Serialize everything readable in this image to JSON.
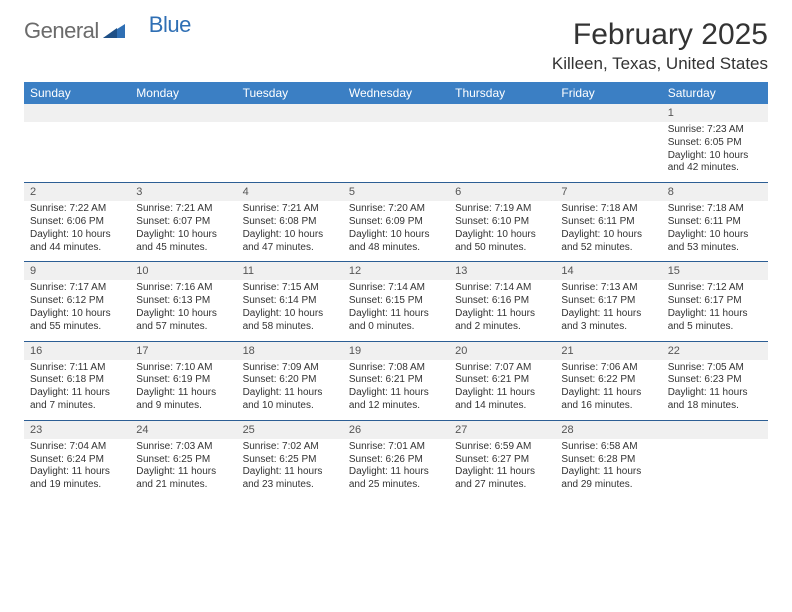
{
  "brand": {
    "part1": "General",
    "part2": "Blue"
  },
  "title": "February 2025",
  "location": "Killeen, Texas, United States",
  "dayLabels": [
    "Sunday",
    "Monday",
    "Tuesday",
    "Wednesday",
    "Thursday",
    "Friday",
    "Saturday"
  ],
  "colors": {
    "header_bg": "#3b7fc4",
    "header_text": "#ffffff",
    "daynum_bg": "#f0f0f0",
    "border": "#2c5e94",
    "logo_gray": "#6b6b6b",
    "logo_blue": "#2f6fb4",
    "text": "#333333",
    "page_bg": "#ffffff"
  },
  "weeks": [
    [
      {
        "num": "",
        "lines": []
      },
      {
        "num": "",
        "lines": []
      },
      {
        "num": "",
        "lines": []
      },
      {
        "num": "",
        "lines": []
      },
      {
        "num": "",
        "lines": []
      },
      {
        "num": "",
        "lines": []
      },
      {
        "num": "1",
        "lines": [
          "Sunrise: 7:23 AM",
          "Sunset: 6:05 PM",
          "Daylight: 10 hours",
          "and 42 minutes."
        ]
      }
    ],
    [
      {
        "num": "2",
        "lines": [
          "Sunrise: 7:22 AM",
          "Sunset: 6:06 PM",
          "Daylight: 10 hours",
          "and 44 minutes."
        ]
      },
      {
        "num": "3",
        "lines": [
          "Sunrise: 7:21 AM",
          "Sunset: 6:07 PM",
          "Daylight: 10 hours",
          "and 45 minutes."
        ]
      },
      {
        "num": "4",
        "lines": [
          "Sunrise: 7:21 AM",
          "Sunset: 6:08 PM",
          "Daylight: 10 hours",
          "and 47 minutes."
        ]
      },
      {
        "num": "5",
        "lines": [
          "Sunrise: 7:20 AM",
          "Sunset: 6:09 PM",
          "Daylight: 10 hours",
          "and 48 minutes."
        ]
      },
      {
        "num": "6",
        "lines": [
          "Sunrise: 7:19 AM",
          "Sunset: 6:10 PM",
          "Daylight: 10 hours",
          "and 50 minutes."
        ]
      },
      {
        "num": "7",
        "lines": [
          "Sunrise: 7:18 AM",
          "Sunset: 6:11 PM",
          "Daylight: 10 hours",
          "and 52 minutes."
        ]
      },
      {
        "num": "8",
        "lines": [
          "Sunrise: 7:18 AM",
          "Sunset: 6:11 PM",
          "Daylight: 10 hours",
          "and 53 minutes."
        ]
      }
    ],
    [
      {
        "num": "9",
        "lines": [
          "Sunrise: 7:17 AM",
          "Sunset: 6:12 PM",
          "Daylight: 10 hours",
          "and 55 minutes."
        ]
      },
      {
        "num": "10",
        "lines": [
          "Sunrise: 7:16 AM",
          "Sunset: 6:13 PM",
          "Daylight: 10 hours",
          "and 57 minutes."
        ]
      },
      {
        "num": "11",
        "lines": [
          "Sunrise: 7:15 AM",
          "Sunset: 6:14 PM",
          "Daylight: 10 hours",
          "and 58 minutes."
        ]
      },
      {
        "num": "12",
        "lines": [
          "Sunrise: 7:14 AM",
          "Sunset: 6:15 PM",
          "Daylight: 11 hours",
          "and 0 minutes."
        ]
      },
      {
        "num": "13",
        "lines": [
          "Sunrise: 7:14 AM",
          "Sunset: 6:16 PM",
          "Daylight: 11 hours",
          "and 2 minutes."
        ]
      },
      {
        "num": "14",
        "lines": [
          "Sunrise: 7:13 AM",
          "Sunset: 6:17 PM",
          "Daylight: 11 hours",
          "and 3 minutes."
        ]
      },
      {
        "num": "15",
        "lines": [
          "Sunrise: 7:12 AM",
          "Sunset: 6:17 PM",
          "Daylight: 11 hours",
          "and 5 minutes."
        ]
      }
    ],
    [
      {
        "num": "16",
        "lines": [
          "Sunrise: 7:11 AM",
          "Sunset: 6:18 PM",
          "Daylight: 11 hours",
          "and 7 minutes."
        ]
      },
      {
        "num": "17",
        "lines": [
          "Sunrise: 7:10 AM",
          "Sunset: 6:19 PM",
          "Daylight: 11 hours",
          "and 9 minutes."
        ]
      },
      {
        "num": "18",
        "lines": [
          "Sunrise: 7:09 AM",
          "Sunset: 6:20 PM",
          "Daylight: 11 hours",
          "and 10 minutes."
        ]
      },
      {
        "num": "19",
        "lines": [
          "Sunrise: 7:08 AM",
          "Sunset: 6:21 PM",
          "Daylight: 11 hours",
          "and 12 minutes."
        ]
      },
      {
        "num": "20",
        "lines": [
          "Sunrise: 7:07 AM",
          "Sunset: 6:21 PM",
          "Daylight: 11 hours",
          "and 14 minutes."
        ]
      },
      {
        "num": "21",
        "lines": [
          "Sunrise: 7:06 AM",
          "Sunset: 6:22 PM",
          "Daylight: 11 hours",
          "and 16 minutes."
        ]
      },
      {
        "num": "22",
        "lines": [
          "Sunrise: 7:05 AM",
          "Sunset: 6:23 PM",
          "Daylight: 11 hours",
          "and 18 minutes."
        ]
      }
    ],
    [
      {
        "num": "23",
        "lines": [
          "Sunrise: 7:04 AM",
          "Sunset: 6:24 PM",
          "Daylight: 11 hours",
          "and 19 minutes."
        ]
      },
      {
        "num": "24",
        "lines": [
          "Sunrise: 7:03 AM",
          "Sunset: 6:25 PM",
          "Daylight: 11 hours",
          "and 21 minutes."
        ]
      },
      {
        "num": "25",
        "lines": [
          "Sunrise: 7:02 AM",
          "Sunset: 6:25 PM",
          "Daylight: 11 hours",
          "and 23 minutes."
        ]
      },
      {
        "num": "26",
        "lines": [
          "Sunrise: 7:01 AM",
          "Sunset: 6:26 PM",
          "Daylight: 11 hours",
          "and 25 minutes."
        ]
      },
      {
        "num": "27",
        "lines": [
          "Sunrise: 6:59 AM",
          "Sunset: 6:27 PM",
          "Daylight: 11 hours",
          "and 27 minutes."
        ]
      },
      {
        "num": "28",
        "lines": [
          "Sunrise: 6:58 AM",
          "Sunset: 6:28 PM",
          "Daylight: 11 hours",
          "and 29 minutes."
        ]
      },
      {
        "num": "",
        "lines": []
      }
    ]
  ]
}
